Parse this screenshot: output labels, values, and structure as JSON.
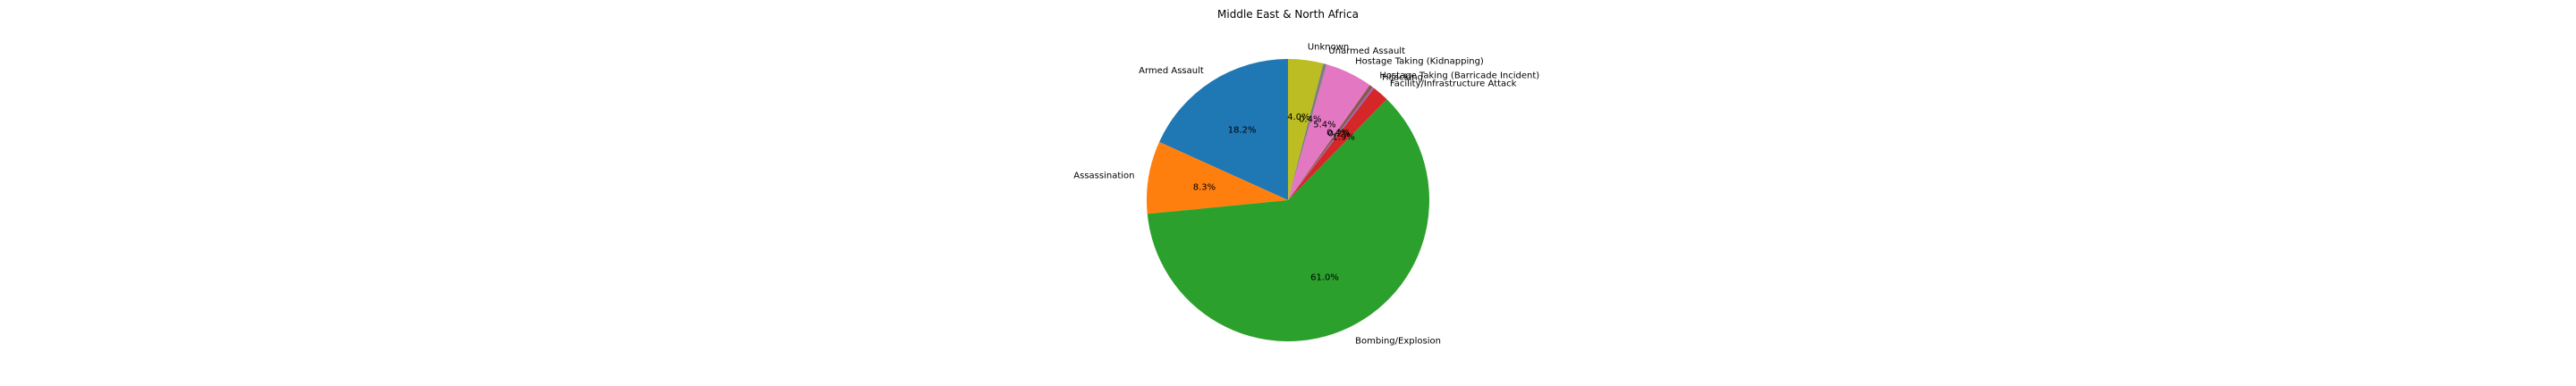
{
  "chart_data": {
    "type": "pie",
    "title": "Middle East & North Africa",
    "start_angle_deg": 90,
    "direction": "counterclockwise",
    "slices": [
      {
        "label": "Armed Assault",
        "value": 18.2,
        "pct_label": "18.2%",
        "color": "#1f77b4"
      },
      {
        "label": "Assassination",
        "value": 8.3,
        "pct_label": "8.3%",
        "color": "#ff7f0e"
      },
      {
        "label": "Bombing/Explosion",
        "value": 61.0,
        "pct_label": "61.0%",
        "color": "#2ca02c"
      },
      {
        "label": "Facility/Infrastructure Attack",
        "value": 1.9,
        "pct_label": "1.9%",
        "color": "#d62728"
      },
      {
        "label": "Hijacking",
        "value": 0.2,
        "pct_label": "0.2%",
        "color": "#9467bd"
      },
      {
        "label": "Hostage Taking (Barricade Incident)",
        "value": 0.4,
        "pct_label": "0.4%",
        "color": "#8c564b"
      },
      {
        "label": "Hostage Taking (Kidnapping)",
        "value": 5.4,
        "pct_label": "5.4%",
        "color": "#e377c2"
      },
      {
        "label": "Unarmed Assault",
        "value": 0.4,
        "pct_label": "0.4%",
        "color": "#7f7f7f"
      },
      {
        "label": "Unknown",
        "value": 4.0,
        "pct_label": "4.0%",
        "color": "#bcbd22"
      }
    ]
  }
}
